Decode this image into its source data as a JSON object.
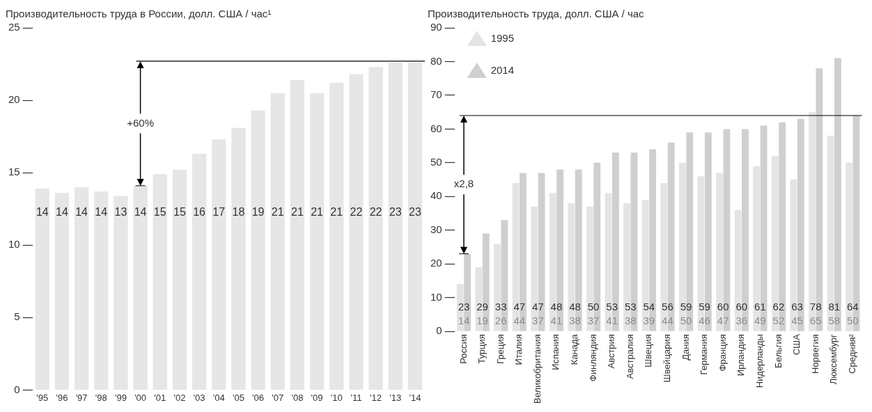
{
  "chart_data": [
    {
      "type": "bar",
      "title": "Производительность труда в России, долл. США / час¹",
      "categories": [
        "'95",
        "'96",
        "'97",
        "'98",
        "'99",
        "'00",
        "'01",
        "'02",
        "'03",
        "'04",
        "'05",
        "'06",
        "'07",
        "'08",
        "'09",
        "'10",
        "'11",
        "'12",
        "'13",
        "'14"
      ],
      "values": [
        13.9,
        13.6,
        14.0,
        13.7,
        13.4,
        14.1,
        14.9,
        15.2,
        16.3,
        17.3,
        18.1,
        19.3,
        20.5,
        21.4,
        20.5,
        21.2,
        21.8,
        22.3,
        22.6,
        22.6
      ],
      "value_labels": [
        "14",
        "14",
        "14",
        "14",
        "13",
        "14",
        "15",
        "15",
        "16",
        "17",
        "18",
        "19",
        "21",
        "21",
        "21",
        "21",
        "22",
        "22",
        "23",
        "23"
      ],
      "color": "#e6e6e6",
      "ylim": [
        0,
        25
      ],
      "yticks": [
        0,
        5,
        10,
        15,
        20,
        25
      ],
      "grid": false,
      "ref_lines": [
        {
          "axis": "y",
          "value": 22.7,
          "color": "#000000"
        }
      ],
      "annotations": [
        {
          "text": "+60%",
          "x": "'00",
          "y": 14.1
        }
      ]
    },
    {
      "type": "bar",
      "title": "Производительность труда, долл. США / час",
      "categories": [
        "Россия",
        "Турция",
        "Греция",
        "Италия",
        "Великобритания",
        "Испания",
        "Канада",
        "Финляндия",
        "Австрия",
        "Австралия",
        "Швеция",
        "Швейцария",
        "Дания",
        "Германия",
        "Франция",
        "Ирландия",
        "Нидерланды",
        "Бельгия",
        "США",
        "Норвегия",
        "Люксембург",
        "Средняя²"
      ],
      "series": [
        {
          "name": "1995",
          "color": "#e4e4e4",
          "values": [
            14,
            19,
            26,
            44,
            37,
            41,
            38,
            37,
            41,
            38,
            39,
            44,
            50,
            46,
            47,
            36,
            49,
            52,
            45,
            65,
            58,
            50
          ]
        },
        {
          "name": "2014",
          "color": "#cfcfcf",
          "values": [
            23,
            29,
            33,
            47,
            47,
            48,
            48,
            50,
            53,
            53,
            54,
            56,
            59,
            59,
            60,
            60,
            61,
            62,
            63,
            78,
            81,
            64
          ]
        }
      ],
      "data_labels": true,
      "legend": "top left",
      "ylim": [
        0,
        90
      ],
      "yticks": [
        0,
        10,
        20,
        30,
        40,
        50,
        60,
        70,
        80,
        90
      ],
      "grid": false,
      "ref_lines": [
        {
          "axis": "y",
          "value": 64,
          "color": "#000000"
        }
      ],
      "annotations": [
        {
          "text": "x2,8",
          "x": "Россия",
          "y": 23
        }
      ]
    }
  ]
}
